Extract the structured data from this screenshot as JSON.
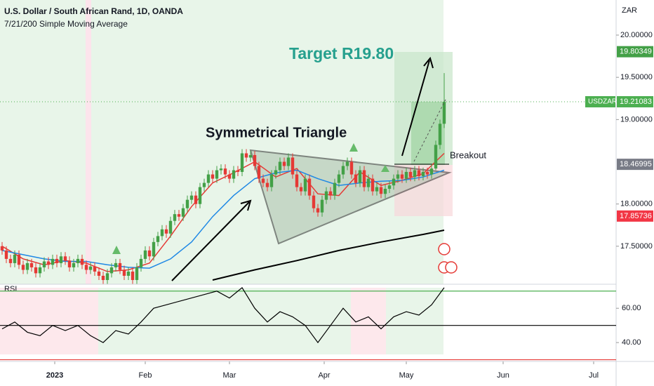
{
  "chart_data": {
    "type": "candlestick",
    "title": "U.S. Dollar / South African Rand, 1D, OANDA",
    "subtitle": "7/21/200 Simple Moving Average",
    "y_unit": "ZAR",
    "up_color": "#43a047",
    "down_color": "#e53935",
    "ylim": [
      17.05,
      20.4156
    ],
    "yticks": [
      {
        "value": 20,
        "label": "20.00000"
      },
      {
        "value": 19.5,
        "label": "19.50000"
      },
      {
        "value": 19,
        "label": "19.00000"
      },
      {
        "value": 18,
        "label": "18.00000"
      },
      {
        "value": 17.5,
        "label": "17.50000"
      }
    ],
    "xlim": [
      -0.5,
      145.5
    ],
    "xticks": [
      {
        "value": 12.5,
        "label": "2023"
      },
      {
        "value": 34,
        "label": "Feb"
      },
      {
        "value": 54,
        "label": "Mar"
      },
      {
        "value": 76.5,
        "label": "Apr"
      },
      {
        "value": 96,
        "label": "May"
      },
      {
        "value": 119,
        "label": "Jun"
      },
      {
        "value": 140.5,
        "label": "Jul"
      }
    ],
    "candles": [
      [
        17.5,
        17.55,
        17.4,
        17.45
      ],
      [
        17.45,
        17.5,
        17.3,
        17.35
      ],
      [
        17.35,
        17.4,
        17.25,
        17.3
      ],
      [
        17.3,
        17.45,
        17.25,
        17.4
      ],
      [
        17.4,
        17.45,
        17.23,
        17.28
      ],
      [
        17.28,
        17.33,
        17.17,
        17.22
      ],
      [
        17.22,
        17.35,
        17.17,
        17.3
      ],
      [
        17.3,
        17.35,
        17.2,
        17.25
      ],
      [
        17.25,
        17.3,
        17.13,
        17.18
      ],
      [
        17.18,
        17.3,
        17.13,
        17.25
      ],
      [
        17.25,
        17.37,
        17.2,
        17.32
      ],
      [
        17.32,
        17.37,
        17.23,
        17.28
      ],
      [
        17.28,
        17.4,
        17.23,
        17.35
      ],
      [
        17.35,
        17.4,
        17.25,
        17.3
      ],
      [
        17.3,
        17.43,
        17.25,
        17.38
      ],
      [
        17.38,
        17.43,
        17.28,
        17.33
      ],
      [
        17.33,
        17.38,
        17.2,
        17.25
      ],
      [
        17.25,
        17.35,
        17.2,
        17.3
      ],
      [
        17.3,
        17.4,
        17.25,
        17.35
      ],
      [
        17.35,
        17.4,
        17.23,
        17.28
      ],
      [
        17.28,
        17.33,
        17.17,
        17.22
      ],
      [
        17.22,
        17.31,
        17.17,
        17.26
      ],
      [
        17.26,
        17.31,
        17.15,
        17.2
      ],
      [
        17.2,
        17.25,
        17.1,
        17.15
      ],
      [
        17.15,
        17.2,
        17.05,
        17.1
      ],
      [
        17.1,
        17.23,
        17.05,
        17.18
      ],
      [
        17.18,
        17.3,
        17.13,
        17.25
      ],
      [
        17.25,
        17.35,
        17.2,
        17.3
      ],
      [
        17.3,
        17.35,
        17.17,
        17.22
      ],
      [
        17.22,
        17.27,
        17.1,
        17.15
      ],
      [
        17.15,
        17.25,
        17.1,
        17.2
      ],
      [
        17.2,
        17.25,
        17.05,
        17.1
      ],
      [
        17.1,
        17.3,
        17.05,
        17.25
      ],
      [
        17.25,
        17.4,
        17.2,
        17.35
      ],
      [
        17.35,
        17.5,
        17.3,
        17.45
      ],
      [
        17.45,
        17.5,
        17.33,
        17.38
      ],
      [
        17.38,
        17.6,
        17.33,
        17.55
      ],
      [
        17.55,
        17.67,
        17.5,
        17.62
      ],
      [
        17.62,
        17.75,
        17.57,
        17.7
      ],
      [
        17.7,
        17.75,
        17.6,
        17.65
      ],
      [
        17.65,
        17.85,
        17.6,
        17.8
      ],
      [
        17.8,
        17.93,
        17.75,
        17.88
      ],
      [
        17.88,
        17.93,
        17.8,
        17.85
      ],
      [
        17.85,
        18.0,
        17.8,
        17.95
      ],
      [
        17.95,
        18.1,
        17.9,
        18.05
      ],
      [
        18.05,
        18.15,
        18.0,
        18.1
      ],
      [
        18.1,
        18.15,
        17.95,
        18.0
      ],
      [
        18.0,
        18.25,
        17.95,
        18.2
      ],
      [
        18.2,
        18.3,
        18.15,
        18.25
      ],
      [
        18.25,
        18.4,
        18.2,
        18.35
      ],
      [
        18.35,
        18.4,
        18.25,
        18.3
      ],
      [
        18.3,
        18.45,
        18.25,
        18.4
      ],
      [
        18.4,
        18.47,
        18.35,
        18.42
      ],
      [
        18.42,
        18.47,
        18.3,
        18.35
      ],
      [
        18.35,
        18.4,
        18.25,
        18.3
      ],
      [
        18.3,
        18.45,
        18.25,
        18.4
      ],
      [
        18.4,
        18.45,
        18.33,
        18.38
      ],
      [
        18.38,
        18.65,
        18.33,
        18.6
      ],
      [
        18.6,
        18.65,
        18.5,
        18.55
      ],
      [
        18.55,
        18.63,
        18.5,
        18.58
      ],
      [
        18.58,
        18.63,
        18.4,
        18.45
      ],
      [
        18.45,
        18.5,
        18.25,
        18.3
      ],
      [
        18.3,
        18.35,
        18.2,
        18.25
      ],
      [
        18.25,
        18.3,
        18.15,
        18.2
      ],
      [
        18.2,
        18.4,
        18.15,
        18.35
      ],
      [
        18.35,
        18.45,
        18.3,
        18.4
      ],
      [
        18.4,
        18.55,
        18.35,
        18.5
      ],
      [
        18.5,
        18.55,
        18.4,
        18.45
      ],
      [
        18.45,
        18.6,
        18.4,
        18.55
      ],
      [
        18.55,
        18.6,
        18.3,
        18.35
      ],
      [
        18.35,
        18.4,
        18.15,
        18.2
      ],
      [
        18.2,
        18.25,
        18.1,
        18.15
      ],
      [
        18.15,
        18.35,
        18.1,
        18.3
      ],
      [
        18.3,
        18.35,
        18.05,
        18.1
      ],
      [
        18.1,
        18.15,
        17.9,
        17.95
      ],
      [
        17.95,
        18.0,
        17.85,
        17.9
      ],
      [
        17.9,
        18.1,
        17.85,
        18.05
      ],
      [
        18.05,
        18.2,
        18.0,
        18.15
      ],
      [
        18.15,
        18.2,
        18.05,
        18.1
      ],
      [
        18.1,
        18.3,
        18.05,
        18.25
      ],
      [
        18.25,
        18.4,
        18.2,
        18.35
      ],
      [
        18.35,
        18.5,
        18.3,
        18.45
      ],
      [
        18.45,
        18.55,
        18.4,
        18.5
      ],
      [
        18.5,
        18.55,
        18.3,
        18.35
      ],
      [
        18.35,
        18.4,
        18.2,
        18.25
      ],
      [
        18.25,
        18.45,
        18.2,
        18.4
      ],
      [
        18.4,
        18.45,
        18.15,
        18.2
      ],
      [
        18.2,
        18.35,
        18.15,
        18.3
      ],
      [
        18.3,
        18.35,
        18.1,
        18.15
      ],
      [
        18.15,
        18.25,
        18.1,
        18.2
      ],
      [
        18.2,
        18.25,
        18.07,
        18.12
      ],
      [
        18.12,
        18.23,
        18.07,
        18.18
      ],
      [
        18.18,
        18.27,
        18.13,
        18.22
      ],
      [
        18.22,
        18.35,
        18.17,
        18.3
      ],
      [
        18.3,
        18.4,
        18.25,
        18.35
      ],
      [
        18.35,
        18.4,
        18.25,
        18.3
      ],
      [
        18.3,
        18.43,
        18.25,
        18.38
      ],
      [
        18.38,
        18.43,
        18.27,
        18.32
      ],
      [
        18.32,
        18.45,
        18.27,
        18.4
      ],
      [
        18.4,
        18.45,
        18.28,
        18.33
      ],
      [
        18.33,
        18.43,
        18.28,
        18.38
      ],
      [
        18.38,
        18.43,
        18.3,
        18.35
      ],
      [
        18.35,
        18.47,
        18.3,
        18.42
      ],
      [
        18.42,
        18.75,
        18.4,
        18.7
      ],
      [
        18.7,
        19.0,
        18.65,
        18.95
      ],
      [
        18.95,
        19.55,
        18.9,
        19.21
      ]
    ],
    "series": [
      {
        "color": "#e53935",
        "x": [
          0,
          5,
          10,
          15,
          20,
          25,
          30,
          35,
          40,
          45,
          50,
          55,
          60,
          65,
          70,
          75,
          80,
          85,
          90,
          95,
          100,
          105
        ],
        "values": [
          17.5,
          17.35,
          17.28,
          17.33,
          17.3,
          17.2,
          17.22,
          17.3,
          17.62,
          17.97,
          18.25,
          18.37,
          18.5,
          18.32,
          18.42,
          18.12,
          18.1,
          18.38,
          18.22,
          18.28,
          18.36,
          18.6
        ]
      },
      {
        "color": "#1e88e5",
        "x": [
          0,
          5,
          10,
          15,
          20,
          25,
          30,
          35,
          40,
          45,
          50,
          55,
          60,
          65,
          70,
          75,
          80,
          85,
          90,
          95,
          100,
          105
        ],
        "values": [
          17.45,
          17.4,
          17.35,
          17.32,
          17.32,
          17.28,
          17.25,
          17.24,
          17.35,
          17.55,
          17.85,
          18.1,
          18.3,
          18.37,
          18.4,
          18.3,
          18.22,
          18.25,
          18.27,
          18.28,
          18.32,
          18.4
        ]
      },
      {
        "color": "#000000",
        "x": [
          50,
          60,
          70,
          80,
          90,
          100,
          105
        ],
        "values": [
          17.1,
          17.22,
          17.33,
          17.45,
          17.55,
          17.64,
          17.69
        ]
      }
    ],
    "price_labels": [
      {
        "value": 19.80349,
        "color": "#43a047"
      },
      {
        "value": 18.46995,
        "color": "#787b86"
      },
      {
        "value": 17.85736,
        "color": "#f23645"
      }
    ],
    "last_price": {
      "name": "USDZAR",
      "value": 19.21083,
      "color": "#4caf50"
    },
    "annotations": [
      "Symmetrical Triangle",
      "Target R19.80",
      "Breakout"
    ],
    "rsi": {
      "title": "RSI",
      "color": "#000000",
      "ylim": [
        29,
        74
      ],
      "yticks": [
        {
          "value": 60,
          "label": "60.00"
        },
        {
          "value": 40,
          "label": "40.00"
        }
      ],
      "levels": [
        {
          "value": 70,
          "color": "#4caf50"
        },
        {
          "value": 50,
          "color": "#000000"
        },
        {
          "value": 30,
          "color": "#e53935"
        }
      ],
      "x": [
        0,
        3,
        6,
        9,
        12,
        15,
        18,
        21,
        24,
        27,
        30,
        33,
        36,
        39,
        42,
        45,
        48,
        51,
        54,
        57,
        60,
        63,
        66,
        69,
        72,
        75,
        78,
        81,
        84,
        87,
        90,
        93,
        96,
        99,
        102,
        105
      ],
      "values": [
        48,
        52,
        46,
        44,
        50,
        47,
        50,
        44,
        40,
        47,
        45,
        52,
        60,
        62,
        64,
        66,
        68,
        70,
        66,
        72,
        60,
        52,
        58,
        55,
        50,
        40,
        50,
        60,
        52,
        55,
        48,
        55,
        58,
        56,
        62,
        72
      ]
    }
  }
}
